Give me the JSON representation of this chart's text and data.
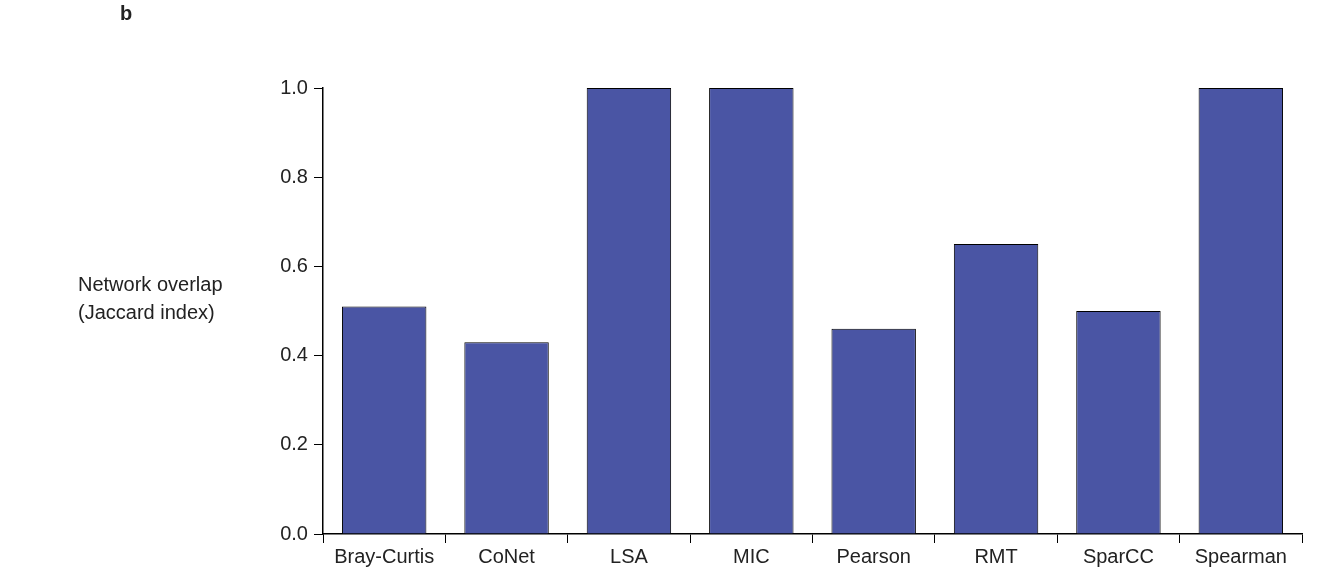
{
  "chart_data": {
    "type": "bar",
    "ylabel": "Network overlap (Jaccard index)",
    "annotations": [
      "b"
    ],
    "categories": [
      "Bray-Curtis",
      "CoNet",
      "LSA",
      "MIC",
      "Pearson",
      "RMT",
      "SparCC",
      "Spearman"
    ],
    "values": [
      0.51,
      0.43,
      1.0,
      1.0,
      0.46,
      0.65,
      0.5,
      1.0
    ],
    "color": "#4a55a4",
    "ylim": [
      0,
      1
    ],
    "yticks": [
      {
        "value": 0,
        "label": "0.0"
      },
      {
        "value": 0.2,
        "label": "0.2"
      },
      {
        "value": 0.4,
        "label": "0.4"
      },
      {
        "value": 0.6,
        "label": "0.6"
      },
      {
        "value": 0.8,
        "label": "0.8"
      },
      {
        "value": 1,
        "label": "1.0"
      }
    ],
    "grid": false,
    "legend": false
  }
}
